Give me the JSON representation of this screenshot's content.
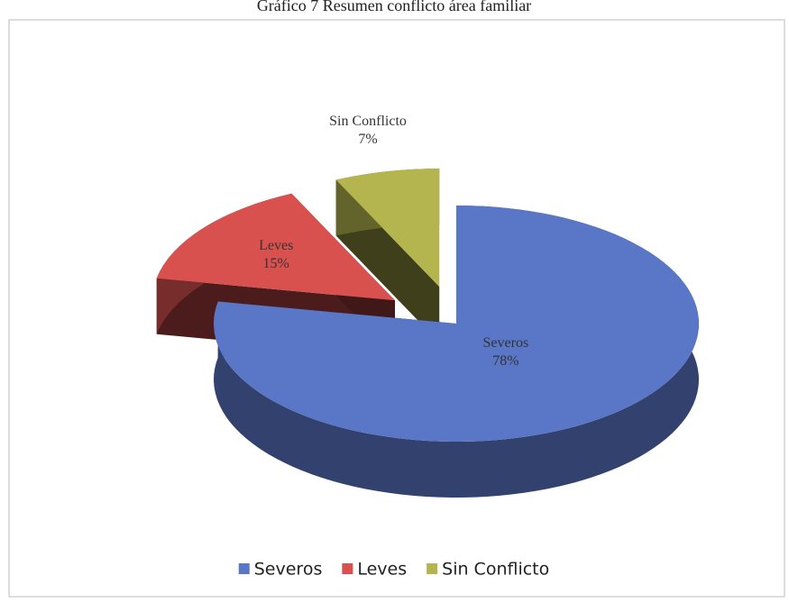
{
  "chart_data": {
    "type": "pie3d",
    "title": "Gráfico 7 Resumen conflicto área familiar",
    "categories": [
      "Severos",
      "Leves",
      "Sin Conflicto"
    ],
    "values": [
      78,
      15,
      7
    ],
    "value_labels": [
      "78%",
      "15%",
      "7%"
    ],
    "colors": [
      "#5a76c6",
      "#d9514f",
      "#b4b54e"
    ],
    "legend": "bottom"
  }
}
